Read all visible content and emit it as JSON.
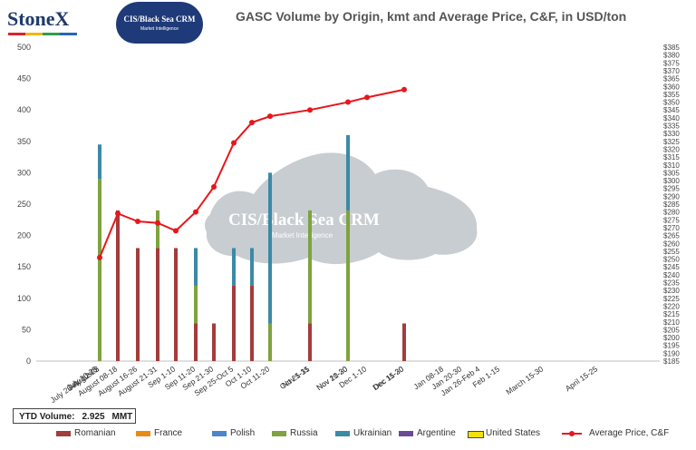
{
  "brand": {
    "name": "StoneX",
    "badge_title": "CIS/Black Sea CRM",
    "badge_subtitle": "Market Intelligence"
  },
  "watermark": {
    "title": "CIS/Black Sea CRM",
    "subtitle": "Market Intelligence"
  },
  "ytd": {
    "label": "YTD Volume:",
    "value": "2.925",
    "unit": "MMT"
  },
  "chart_data": {
    "type": "bar",
    "title": "GASC Volume by Origin, kmt and Average Price, C&F, in USD/ton",
    "xlabel": "",
    "ylabel": "",
    "ylim": [
      0,
      500
    ],
    "y_ticks": [
      0,
      50,
      100,
      150,
      200,
      250,
      300,
      350,
      400,
      450,
      500
    ],
    "y2lim": [
      185,
      385
    ],
    "y2_ticks": [
      "$185",
      "$190",
      "$195",
      "$200",
      "$205",
      "$210",
      "$215",
      "$220",
      "$225",
      "$230",
      "$235",
      "$240",
      "$245",
      "$250",
      "$255",
      "$260",
      "$265",
      "$270",
      "$275",
      "$280",
      "$285",
      "$290",
      "$295",
      "$300",
      "$305",
      "$310",
      "$315",
      "$320",
      "$325",
      "$330",
      "$335",
      "$340",
      "$345",
      "$350",
      "$355",
      "$360",
      "$365",
      "$370",
      "$375",
      "$380",
      "$385"
    ],
    "grid": false,
    "legend_position": "bottom",
    "categories": [
      "July 10-25",
      "July 12-22",
      "July 25-August 5",
      "August 08-18",
      "August 16-26",
      "August 21-31",
      "Sep 1-10",
      "Sep 11-20",
      "Sep 21-30",
      "Sep 25-Oct 5",
      "Oct 1-10",
      "Oct 11-20",
      "Oct 21-31",
      "Nov 5-15",
      "Nov 10-20",
      "Nov 21-30",
      "Dec 1-10",
      "Dec 11-20",
      "Dec 15-30",
      "Jan 08-18",
      "Jan 20-30",
      "Jan 26-Feb 4",
      "Feb 1-15",
      "March 15-30",
      "April 15-25"
    ],
    "series": [
      {
        "name": "Romanian",
        "color": "#a33c3c",
        "values": [
          0,
          0,
          0,
          240,
          180,
          180,
          180,
          60,
          60,
          120,
          120,
          0,
          60,
          0,
          60,
          0,
          0,
          60,
          0,
          0,
          0,
          0,
          0,
          0,
          0
        ]
      },
      {
        "name": "France",
        "color": "#e98a17",
        "values": [
          0,
          0,
          0,
          0,
          0,
          0,
          0,
          0,
          0,
          0,
          0,
          0,
          0,
          0,
          0,
          0,
          0,
          0,
          0,
          0,
          0,
          0,
          0,
          0,
          0
        ]
      },
      {
        "name": "Polish",
        "color": "#4a86c8",
        "values": [
          0,
          0,
          0,
          0,
          0,
          0,
          0,
          0,
          0,
          0,
          0,
          0,
          0,
          0,
          0,
          0,
          0,
          0,
          0,
          0,
          0,
          0,
          0,
          0,
          0
        ]
      },
      {
        "name": "Russia",
        "color": "#7ea33f",
        "values": [
          0,
          0,
          290,
          0,
          0,
          60,
          0,
          60,
          0,
          0,
          0,
          60,
          180,
          0,
          180,
          180,
          0,
          0,
          0,
          0,
          0,
          0,
          0,
          0,
          0
        ]
      },
      {
        "name": "Ukrainian",
        "color": "#3b8aa6",
        "values": [
          0,
          0,
          55,
          0,
          0,
          0,
          0,
          60,
          0,
          60,
          60,
          240,
          0,
          0,
          120,
          0,
          0,
          0,
          0,
          0,
          0,
          0,
          0,
          0,
          0
        ]
      },
      {
        "name": "Argentine",
        "color": "#6b4a9a",
        "values": [
          0,
          0,
          0,
          0,
          0,
          0,
          0,
          0,
          0,
          0,
          0,
          0,
          0,
          0,
          0,
          0,
          0,
          0,
          0,
          0,
          0,
          0,
          0,
          0,
          0
        ]
      },
      {
        "name": "United States",
        "color": "#f2e20a",
        "values": [
          0,
          0,
          0,
          0,
          0,
          0,
          0,
          0,
          0,
          0,
          0,
          0,
          0,
          0,
          0,
          0,
          0,
          0,
          0,
          0,
          0,
          0,
          0,
          0,
          0
        ]
      }
    ],
    "line_series": {
      "name": "Average Price, C&F",
      "color": "#e8161b",
      "axis": "right",
      "values": [
        null,
        null,
        251,
        279,
        274,
        273,
        268,
        280,
        296,
        324,
        337,
        341,
        null,
        345,
        null,
        350,
        353,
        null,
        358,
        null,
        null,
        null,
        null,
        null,
        null
      ]
    }
  }
}
